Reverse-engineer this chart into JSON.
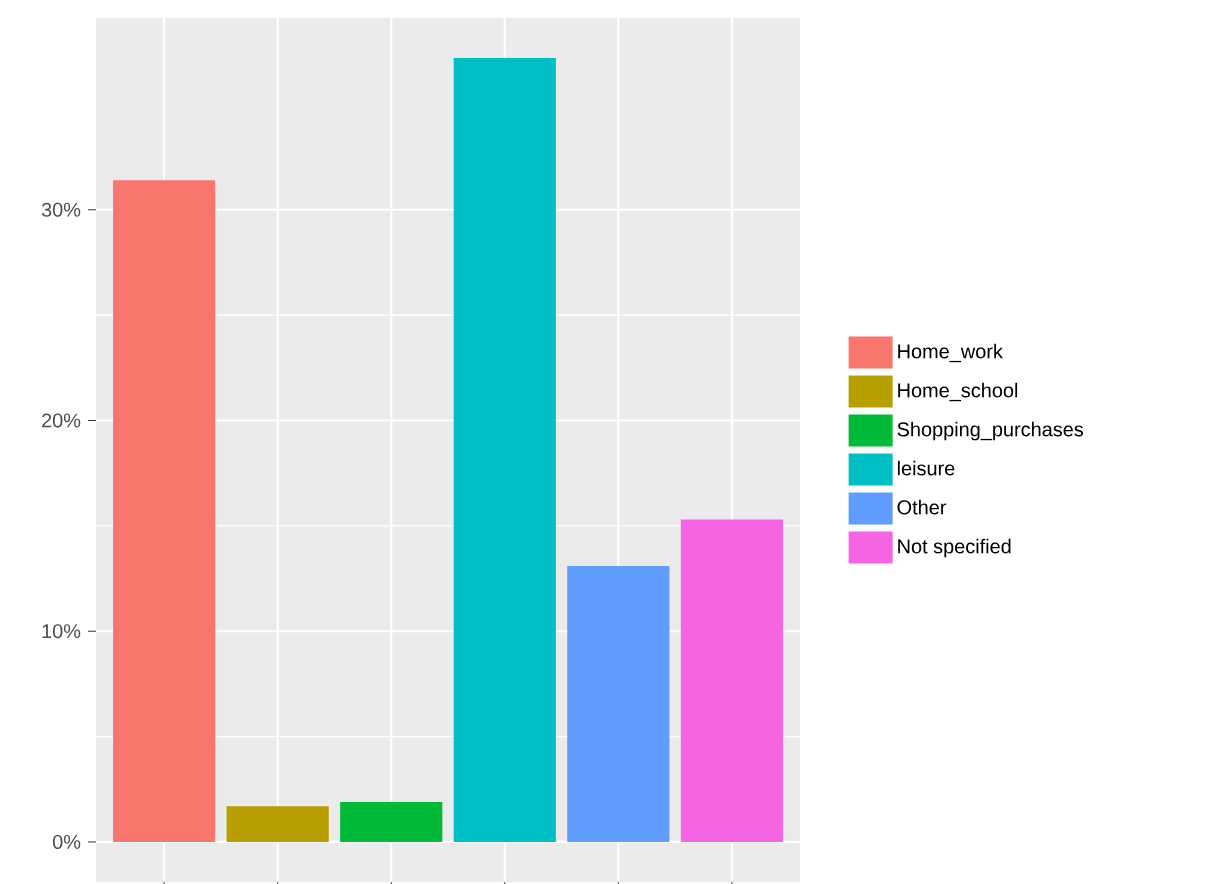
{
  "chart_data": {
    "type": "bar",
    "categories": [
      null,
      null,
      null,
      null,
      null,
      null
    ],
    "series": [
      {
        "name": "Home_work",
        "color": "#f8766d",
        "values": [
          31.4,
          null,
          null,
          null,
          null,
          null
        ]
      },
      {
        "name": "Home_school",
        "color": "#b79f00",
        "values": [
          null,
          1.7,
          null,
          null,
          null,
          null
        ]
      },
      {
        "name": "Shopping_purchases",
        "color": "#00ba38",
        "values": [
          null,
          null,
          1.9,
          null,
          null,
          null
        ]
      },
      {
        "name": "leisure",
        "color": "#00bfc4",
        "values": [
          null,
          null,
          null,
          37.2,
          null,
          null
        ]
      },
      {
        "name": "Other",
        "color": "#619cff",
        "values": [
          null,
          null,
          null,
          null,
          13.1,
          null
        ]
      },
      {
        "name": "Not specified",
        "color": "#f564e3",
        "values": [
          null,
          null,
          null,
          null,
          null,
          15.3
        ]
      }
    ],
    "ylim": [
      -1.9,
      39.1
    ],
    "yticks": [
      {
        "value": 0,
        "label": "0%"
      },
      {
        "value": 10,
        "label": "10%"
      },
      {
        "value": 20,
        "label": "20%"
      },
      {
        "value": 30,
        "label": "30%"
      }
    ],
    "grid": true,
    "legend": "right"
  }
}
